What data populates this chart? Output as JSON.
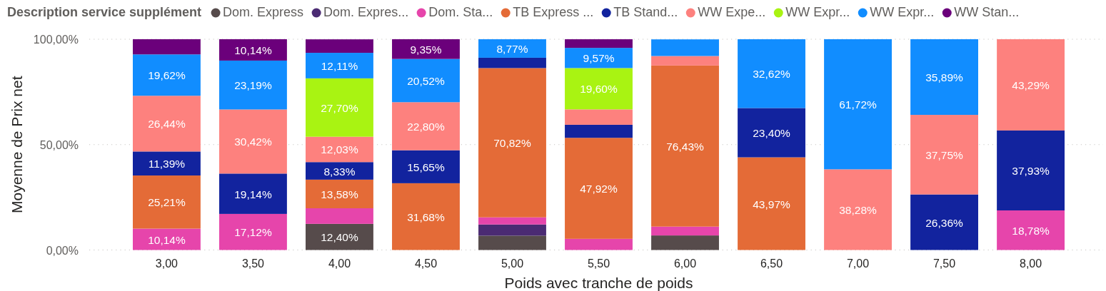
{
  "chart_data": {
    "type": "bar",
    "stacked": true,
    "legend": "top left",
    "legend_title": "Description service supplément",
    "xlabel": "Poids avec tranche de poids",
    "ylabel": "Moyenne de Prix net",
    "grid": "y",
    "categories": [
      "3,00",
      "3,50",
      "4,00",
      "4,50",
      "5,00",
      "5,50",
      "6,00",
      "6,50",
      "7,00",
      "7,50",
      "8,00"
    ],
    "ylim": [
      0,
      100
    ],
    "yticks": [
      {
        "value": 0,
        "label": "0,00%"
      },
      {
        "value": 50,
        "label": "50,00%"
      },
      {
        "value": 100,
        "label": "100,00%"
      }
    ],
    "series": [
      {
        "name": "Dom. Express",
        "color": "#564b4b",
        "values": [
          null,
          null,
          12.4,
          null,
          6.8,
          null,
          6.9,
          null,
          null,
          null,
          null
        ],
        "value_labels": [
          null,
          null,
          "12,40%",
          null,
          null,
          null,
          null,
          null,
          null,
          null,
          null
        ]
      },
      {
        "name": "Dom. Expres...",
        "color": "#4b2b73",
        "values": [
          null,
          null,
          null,
          null,
          5.3,
          null,
          null,
          null,
          null,
          null,
          null
        ]
      },
      {
        "name": "Dom. Sta...",
        "color": "#e645ab",
        "values": [
          10.14,
          17.12,
          7.4,
          null,
          3.4,
          5.3,
          4.2,
          null,
          null,
          null,
          18.78
        ],
        "value_labels": [
          "10,14%",
          "17,12%",
          null,
          null,
          null,
          null,
          null,
          null,
          null,
          null,
          "18,78%"
        ]
      },
      {
        "name": "TB Express ...",
        "color": "#e46b37",
        "values": [
          25.21,
          null,
          13.58,
          31.68,
          70.82,
          47.92,
          76.43,
          43.97,
          null,
          null,
          null
        ],
        "value_labels": [
          "25,21%",
          null,
          "13,58%",
          "31,68%",
          "70,82%",
          "47,92%",
          "76,43%",
          "43,97%",
          null,
          null,
          null
        ]
      },
      {
        "name": "TB Stand...",
        "color": "#12239e",
        "values": [
          11.39,
          19.14,
          8.33,
          15.65,
          4.9,
          6.2,
          null,
          23.4,
          null,
          26.36,
          37.93
        ],
        "value_labels": [
          "11,39%",
          "19,14%",
          "8,33%",
          "15,65%",
          null,
          null,
          null,
          "23,40%",
          null,
          "26,36%",
          "37,93%"
        ]
      },
      {
        "name": "WW Expe...",
        "color": "#fd817e",
        "values": [
          26.44,
          30.42,
          12.03,
          22.8,
          null,
          7.3,
          4.5,
          null,
          38.28,
          37.75,
          43.29
        ],
        "value_labels": [
          "26,44%",
          "30,42%",
          "12,03%",
          "22,80%",
          null,
          null,
          null,
          null,
          "38,28%",
          "37,75%",
          "43,29%"
        ]
      },
      {
        "name": "WW Expr...",
        "color": "#a9f312",
        "values": [
          null,
          null,
          27.7,
          null,
          null,
          19.6,
          null,
          null,
          null,
          null,
          null
        ],
        "value_labels": [
          null,
          null,
          "27,70%",
          null,
          null,
          "19,60%",
          null,
          null,
          null,
          null,
          null
        ]
      },
      {
        "name": "WW Expr...",
        "color": "#118dff",
        "values": [
          19.62,
          23.19,
          12.11,
          20.52,
          8.77,
          9.57,
          7.9,
          32.62,
          61.72,
          35.89,
          null
        ],
        "value_labels": [
          "19,62%",
          "23,19%",
          "12,11%",
          "20,52%",
          "8,77%",
          "9,57%",
          null,
          "32,62%",
          "61,72%",
          "35,89%",
          null
        ]
      },
      {
        "name": "WW Stan...",
        "color": "#6b007b",
        "values": [
          7.2,
          10.14,
          6.4,
          9.35,
          null,
          4.1,
          null,
          null,
          null,
          null,
          null
        ],
        "value_labels": [
          null,
          "10,14%",
          null,
          "9,35%",
          null,
          null,
          null,
          null,
          null,
          null,
          null
        ]
      }
    ]
  }
}
